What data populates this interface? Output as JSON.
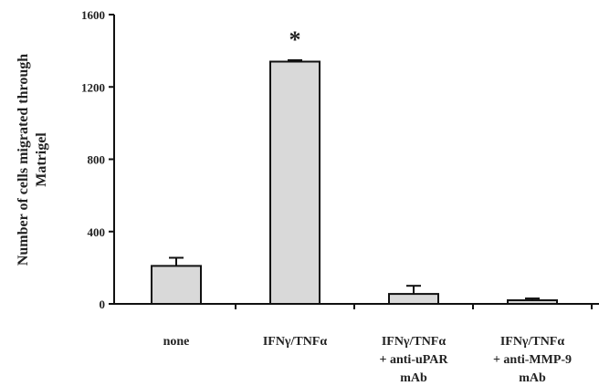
{
  "chart_data": {
    "type": "bar",
    "ylabel": "Number of cells migrated through Matrigel",
    "ylabel_lines": [
      "Number of cells migrated through",
      "Matrigel"
    ],
    "ylim": [
      0,
      1600
    ],
    "yticks": [
      0,
      400,
      800,
      1200,
      1600
    ],
    "categories": [
      "none",
      "IFNγ/TNFα",
      "IFNγ/TNFα + anti-uPAR mAb",
      "IFNγ/TNFα + anti-MMP-9 mAb"
    ],
    "category_lines": [
      [
        "none"
      ],
      [
        "IFNγ/TNFα"
      ],
      [
        "IFNγ/TNFα",
        "+ anti-uPAR",
        "mAb"
      ],
      [
        "IFNγ/TNFα",
        "+ anti-MMP-9",
        "mAb"
      ]
    ],
    "values": [
      210,
      1340,
      55,
      20
    ],
    "errors": [
      45,
      8,
      45,
      10
    ],
    "annotations": [
      {
        "category": "IFNγ/TNFα",
        "text": "*"
      }
    ],
    "bar_color": "#d9d9d9",
    "edge_color": "#111111",
    "grid": false,
    "legend": "none"
  }
}
